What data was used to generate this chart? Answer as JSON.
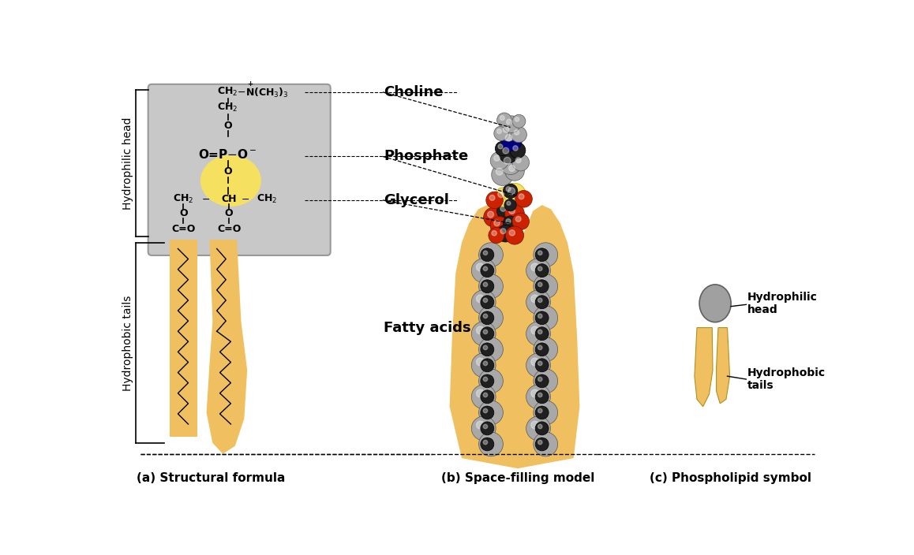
{
  "bg_color": "#ffffff",
  "title_a": "(a) Structural formula",
  "title_b": "(b) Space-filling model",
  "title_c": "(c) Phospholipid symbol",
  "label_hydrophilic_head": "Hydrophilic head",
  "label_hydrophobic_tails": "Hydrophobic tails",
  "label_choline": "Choline",
  "label_phosphate": "Phosphate",
  "label_glycerol": "Glycerol",
  "label_fatty_acids": "Fatty acids",
  "label_hyd_head": "Hydrophilic\nhead",
  "label_hyd_tails": "Hydrophobic\ntails",
  "gray_box_color": "#c8c8c8",
  "yellow_color": "#f5e060",
  "tail_color": "#f0c060",
  "sphere_gray": "#a8a8a8",
  "sphere_dark": "#202020",
  "sphere_red": "#cc2200",
  "sphere_blue": "#000080"
}
